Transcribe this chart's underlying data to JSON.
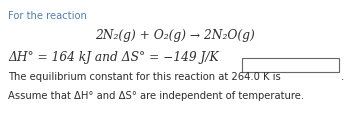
{
  "background_color": "#ffffff",
  "line1": "For the reaction",
  "line2": "2N₂(g) + O₂(g) → 2N₂O(g)",
  "line3": "ΔH° = 164 kJ and ΔS° = −149 J/K",
  "line4": "The equilibrium constant for this reaction at 264.0 K is",
  "line5": "Assume that ΔH° and ΔS° are independent of temperature.",
  "text_color": "#2e2e2e",
  "blue_color": "#4f81bd",
  "fig_width": 3.5,
  "fig_height": 1.19,
  "dpi": 100
}
